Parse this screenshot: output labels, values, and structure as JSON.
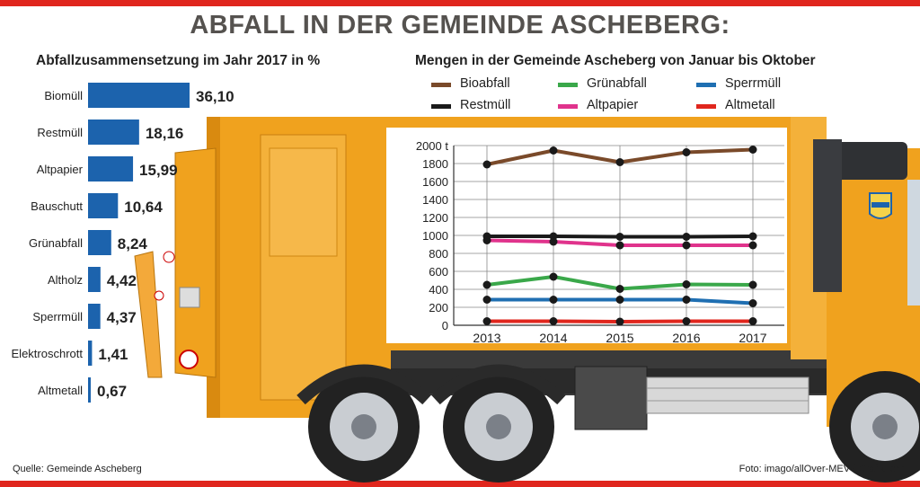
{
  "header": {
    "title": "ABFALL IN DER GEMEINDE ASCHEBERG:"
  },
  "footer": {
    "source": "Quelle: Gemeinde Ascheberg",
    "credit": "Foto: imago/allOver-MEV / Grafik: chr"
  },
  "colors": {
    "accent_red": "#e0261d",
    "bar_blue": "#1c63ad",
    "truck_orange": "#f0a21e"
  },
  "chart_data": [
    {
      "type": "bar",
      "orientation": "horizontal",
      "title": "Abfallzusammensetzung im Jahr 2017 in %",
      "categories": [
        "Biomüll",
        "Restmüll",
        "Altpapier",
        "Bauschutt",
        "Grünabfall",
        "Altholz",
        "Sperrmüll",
        "Elektroschrott",
        "Altmetall"
      ],
      "values": [
        36.1,
        18.16,
        15.99,
        10.64,
        8.24,
        4.42,
        4.37,
        1.41,
        0.67
      ],
      "value_labels": [
        "36,10",
        "18,16",
        "15,99",
        "10,64",
        "8,24",
        "4,42",
        "4,37",
        "1,41",
        "0,67"
      ],
      "color": "#1c63ad"
    },
    {
      "type": "line",
      "title": "Mengen in der Gemeinde Ascheberg von Januar bis Oktober",
      "x": [
        "2013",
        "2014",
        "2015",
        "2016",
        "2017"
      ],
      "ylim": [
        0,
        2000
      ],
      "yticks": [
        0,
        200,
        400,
        600,
        800,
        1000,
        1200,
        1400,
        1600,
        1800,
        2000
      ],
      "ytick_labels": [
        "0",
        "200",
        "400",
        "600",
        "800",
        "1000",
        "1200",
        "1400",
        "1600",
        "1800",
        "2000 t"
      ],
      "grid": true,
      "legend_position": "top",
      "series": [
        {
          "name": "Bioabfall",
          "color": "#7a4a2a",
          "values": [
            1790,
            1945,
            1815,
            1925,
            1955
          ]
        },
        {
          "name": "Grünabfall",
          "color": "#3aa84a",
          "values": [
            450,
            540,
            405,
            455,
            450
          ]
        },
        {
          "name": "Sperrmüll",
          "color": "#1f6fb2",
          "values": [
            285,
            285,
            285,
            285,
            245
          ]
        },
        {
          "name": "Restmüll",
          "color": "#1a1a1a",
          "values": [
            990,
            990,
            985,
            985,
            990
          ]
        },
        {
          "name": "Altpapier",
          "color": "#e0338c",
          "values": [
            945,
            930,
            890,
            890,
            890
          ]
        },
        {
          "name": "Altmetall",
          "color": "#e0261d",
          "values": [
            45,
            45,
            40,
            45,
            45
          ]
        }
      ]
    }
  ]
}
